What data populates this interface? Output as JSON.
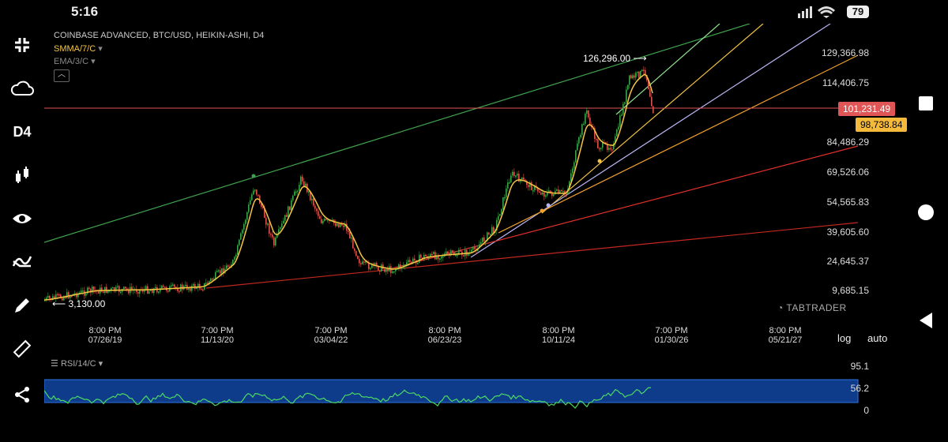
{
  "status": {
    "time": "5:16",
    "battery": "79"
  },
  "sidebar": {
    "timeframe_label": "D4"
  },
  "chart": {
    "title": "COINBASE ADVANCED, BTC/USD, HEIKIN-ASHI, D4",
    "indicator_smma": "SMMA/7/C",
    "indicator_ema": "EMA/3/C",
    "price_ticks": [
      "129,366.98",
      "114,406.75",
      "84,486.29",
      "69,526.06",
      "54,565.83",
      "39,605.60",
      "24,645.37",
      "9,685.15"
    ],
    "current_price": "101,231.49",
    "smma_price": "98,738.84",
    "high_annotation": "126,296.00",
    "low_annotation": "3,130.00",
    "time_ticks": [
      {
        "time": "8:00 PM",
        "date": "07/26/19"
      },
      {
        "time": "7:00 PM",
        "date": "11/13/20"
      },
      {
        "time": "7:00 PM",
        "date": "03/04/22"
      },
      {
        "time": "8:00 PM",
        "date": "06/23/23"
      },
      {
        "time": "8:00 PM",
        "date": "10/11/24"
      },
      {
        "time": "7:00 PM",
        "date": "01/30/26"
      },
      {
        "time": "8:00 PM",
        "date": "05/21/27"
      }
    ],
    "scale_log": "log",
    "scale_auto": "auto",
    "watermark": "TABTRADER",
    "colors": {
      "candle_up": "#3fa34d",
      "candle_down": "#d9534f",
      "smma": "#f5c542",
      "current": "#e05556"
    }
  },
  "rsi": {
    "label": "RSI/14/C",
    "ticks": [
      "95.1",
      "56.2",
      "0"
    ]
  }
}
